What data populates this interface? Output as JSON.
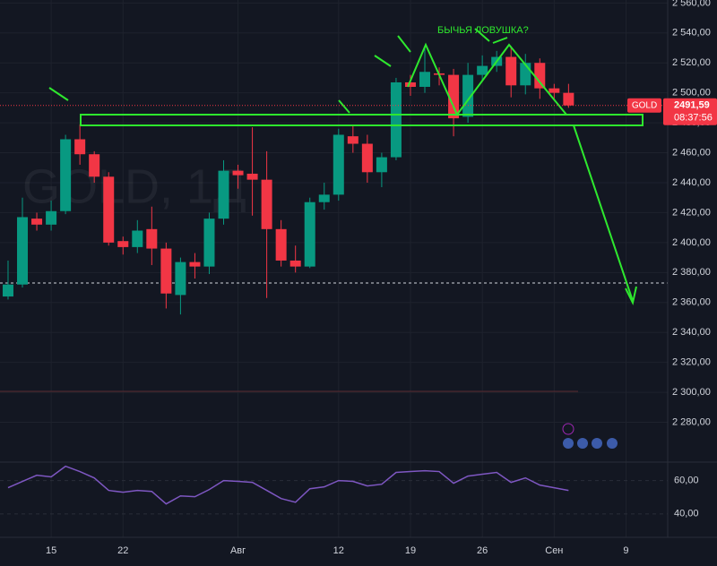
{
  "chart_data": [
    {
      "type": "candlestick",
      "watermark": "GOLD, 1Д",
      "annotation": "БЫЧЬЯ ЛОВУШКА?",
      "price_tag": {
        "symbol": "GOLD",
        "value": 2491.59,
        "label": "2491,59",
        "timer": "08:37:56"
      },
      "up_color": "#089981",
      "down_color": "#f23645",
      "x": [
        0,
        1,
        2,
        3,
        4,
        5,
        6,
        7,
        8,
        9,
        10,
        11,
        12,
        13,
        14,
        15,
        16,
        17,
        18,
        19,
        20,
        21,
        22,
        23,
        24,
        25,
        26,
        27,
        28,
        29,
        30,
        31,
        32,
        33,
        34,
        35,
        36,
        37,
        38,
        39
      ],
      "open": [
        2364,
        2372,
        2416,
        2412,
        2421,
        2469,
        2459,
        2444,
        2401,
        2397,
        2409,
        2396,
        2365,
        2387,
        2384,
        2416,
        2448,
        2446,
        2442,
        2409,
        2388,
        2384,
        2427,
        2432,
        2471,
        2466,
        2447,
        2457,
        2507,
        2504,
        2513,
        2512,
        2484,
        2512,
        2518,
        2524,
        2505,
        2520,
        2503,
        2500
      ],
      "high": [
        2388,
        2430,
        2420,
        2428,
        2472,
        2479,
        2461,
        2447,
        2404,
        2415,
        2424,
        2400,
        2390,
        2393,
        2420,
        2455,
        2452,
        2477,
        2461,
        2415,
        2398,
        2430,
        2440,
        2476,
        2478,
        2472,
        2460,
        2510,
        2512,
        2531,
        2517,
        2516,
        2520,
        2525,
        2528,
        2531,
        2526,
        2523,
        2506,
        2506
      ],
      "low": [
        2362,
        2370,
        2408,
        2408,
        2419,
        2452,
        2440,
        2398,
        2392,
        2393,
        2385,
        2356,
        2352,
        2376,
        2379,
        2412,
        2436,
        2418,
        2363,
        2384,
        2380,
        2383,
        2422,
        2428,
        2460,
        2440,
        2437,
        2455,
        2498,
        2500,
        2505,
        2471,
        2480,
        2508,
        2514,
        2497,
        2499,
        2496,
        2496,
        2490
      ],
      "close": [
        2372,
        2417,
        2412,
        2421,
        2469,
        2459,
        2444,
        2400,
        2397,
        2408,
        2396,
        2366,
        2387,
        2384,
        2416,
        2448,
        2445,
        2442,
        2409,
        2388,
        2384,
        2427,
        2432,
        2472,
        2466,
        2447,
        2457,
        2507,
        2504,
        2514,
        2512,
        2483,
        2512,
        2518,
        2524,
        2505,
        2520,
        2503,
        2500,
        2491.59
      ],
      "xlim": [
        -0.56,
        45.9
      ],
      "xticks": [
        {
          "value": 3,
          "label": "15"
        },
        {
          "value": 8,
          "label": "22"
        },
        {
          "value": 16,
          "label": "Авг"
        },
        {
          "value": 23,
          "label": "12"
        },
        {
          "value": 28,
          "label": "19"
        },
        {
          "value": 33,
          "label": "26"
        },
        {
          "value": 38,
          "label": "Сен"
        },
        {
          "value": 43,
          "label": "9"
        }
      ],
      "ylim": [
        2254,
        2562
      ],
      "yticks": [
        {
          "value": 2280,
          "label": "2 280,00"
        },
        {
          "value": 2300,
          "label": "2 300,00"
        },
        {
          "value": 2320,
          "label": "2 320,00"
        },
        {
          "value": 2340,
          "label": "2 340,00"
        },
        {
          "value": 2360,
          "label": "2 360,00"
        },
        {
          "value": 2380,
          "label": "2 380,00"
        },
        {
          "value": 2400,
          "label": "2 400,00"
        },
        {
          "value": 2420,
          "label": "2 420,00"
        },
        {
          "value": 2440,
          "label": "2 440,00"
        },
        {
          "value": 2460,
          "label": "2 460,00"
        },
        {
          "value": 2480,
          "label": "2 480,00"
        },
        {
          "value": 2500,
          "label": "2 500,00"
        },
        {
          "value": 2520,
          "label": "2 520,00"
        },
        {
          "value": 2540,
          "label": "2 540,00"
        },
        {
          "value": 2560,
          "label": "2 560,00"
        }
      ],
      "grid": true
    },
    {
      "type": "line",
      "color": "#7e57c2",
      "values": [
        55.7,
        59.5,
        63.2,
        62.2,
        68.6,
        65.4,
        61.6,
        54.1,
        53.0,
        54.1,
        53.5,
        46.0,
        50.8,
        50.3,
        54.6,
        60.0,
        59.5,
        58.9,
        54.1,
        49.2,
        47.0,
        55.1,
        56.2,
        60.0,
        59.5,
        56.8,
        57.8,
        64.9,
        65.4,
        65.9,
        65.4,
        58.4,
        62.7,
        63.8,
        64.9,
        58.9,
        61.6,
        57.3,
        55.7,
        54.1
      ],
      "ylim": [
        27,
        70
      ],
      "yticks": [
        {
          "value": 60,
          "label": "60,00"
        },
        {
          "value": 40,
          "label": "40,00"
        }
      ]
    }
  ]
}
